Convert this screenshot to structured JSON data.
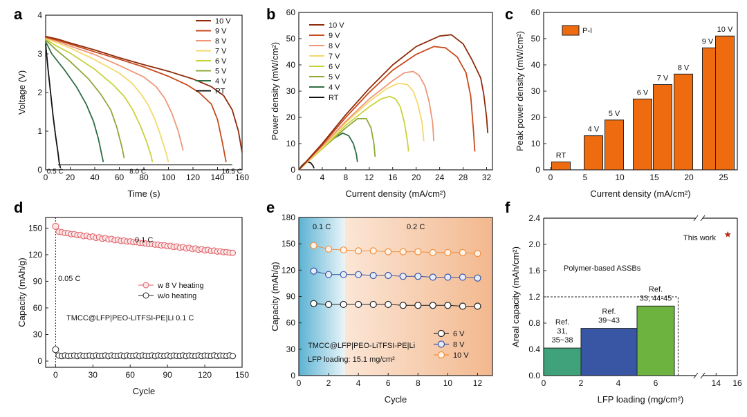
{
  "colors": {
    "10 V": "#8e2a08",
    "9 V": "#c8491b",
    "8 V": "#ee9777",
    "7 V": "#f4d86a",
    "6 V": "#c8d33b",
    "5 V": "#8ea83a",
    "4 V": "#2e6d45",
    "RT": "#111111",
    "bar": "#ef6b10",
    "pink": "#e15b64",
    "blue": "#3956a5",
    "green": "#6db33f",
    "star": "#b5301f"
  },
  "chart_data": [
    {
      "panel": "a",
      "type": "line",
      "xlabel": "Time (s)",
      "ylabel": "Voltage (V)",
      "xlim": [
        0,
        160
      ],
      "ylim": [
        0,
        4
      ],
      "xticks": [
        "0",
        "20",
        "40",
        "60",
        "80",
        "100",
        "120",
        "140",
        "160"
      ],
      "yticks": [
        "0",
        "1",
        "2",
        "3",
        "4"
      ],
      "legend": [
        "10 V",
        "9 V",
        "8 V",
        "7 V",
        "6 V",
        "5 V",
        "4 V",
        "RT"
      ],
      "rate_labels": [
        "0.5 C",
        "8.0 C",
        "16.5 C"
      ],
      "series": [
        {
          "name": "10 V",
          "x": [
            0,
            10,
            20,
            40,
            60,
            80,
            100,
            120,
            135,
            145,
            152,
            157,
            160
          ],
          "y": [
            3.45,
            3.38,
            3.28,
            3.1,
            2.9,
            2.72,
            2.55,
            2.35,
            2.15,
            1.92,
            1.55,
            1.0,
            0.45
          ]
        },
        {
          "name": "9 V",
          "x": [
            0,
            10,
            20,
            40,
            60,
            80,
            100,
            115,
            125,
            135,
            140,
            144,
            147
          ],
          "y": [
            3.43,
            3.35,
            3.25,
            3.05,
            2.86,
            2.66,
            2.42,
            2.2,
            2.0,
            1.7,
            1.3,
            0.7,
            0.2
          ]
        },
        {
          "name": "8 V",
          "x": [
            0,
            10,
            20,
            40,
            60,
            80,
            90,
            97,
            103,
            108,
            112
          ],
          "y": [
            3.42,
            3.32,
            3.2,
            2.98,
            2.7,
            2.4,
            2.15,
            1.85,
            1.45,
            1.0,
            0.5
          ]
        },
        {
          "name": "7 V",
          "x": [
            0,
            10,
            20,
            40,
            60,
            70,
            78,
            84,
            89,
            93,
            98,
            100
          ],
          "y": [
            3.4,
            3.28,
            3.15,
            2.85,
            2.5,
            2.25,
            1.95,
            1.65,
            1.3,
            0.95,
            0.45,
            0.2
          ]
        },
        {
          "name": "6 V",
          "x": [
            0,
            8,
            20,
            40,
            55,
            64,
            71,
            77,
            82,
            86,
            87
          ],
          "y": [
            3.38,
            3.22,
            3.02,
            2.6,
            2.2,
            1.9,
            1.55,
            1.15,
            0.75,
            0.35,
            0.2
          ]
        },
        {
          "name": "5 V",
          "x": [
            0,
            8,
            20,
            35,
            45,
            53,
            58,
            62,
            64
          ],
          "y": [
            3.36,
            3.12,
            2.8,
            2.35,
            1.95,
            1.55,
            1.1,
            0.6,
            0.3
          ]
        },
        {
          "name": "4 V",
          "x": [
            0,
            5,
            15,
            25,
            33,
            39,
            43,
            46,
            47
          ],
          "y": [
            3.32,
            3.0,
            2.6,
            2.15,
            1.7,
            1.25,
            0.8,
            0.35,
            0.2
          ]
        },
        {
          "name": "RT",
          "x": [
            0,
            2,
            4,
            6,
            8,
            10,
            11,
            12
          ],
          "y": [
            3.25,
            2.6,
            2.0,
            1.4,
            0.9,
            0.45,
            0.2,
            0.05
          ]
        }
      ]
    },
    {
      "panel": "b",
      "type": "line",
      "xlabel": "Current density (mA/cm²)",
      "ylabel": "Power density (mW/cm²)",
      "xlim": [
        0,
        33
      ],
      "ylim": [
        0,
        60
      ],
      "xticks": [
        "0",
        "4",
        "8",
        "12",
        "16",
        "20",
        "24",
        "28",
        "32"
      ],
      "yticks": [
        "0",
        "10",
        "20",
        "30",
        "40",
        "50",
        "60"
      ],
      "legend": [
        "10 V",
        "9 V",
        "8 V",
        "7 V",
        "6 V",
        "5 V",
        "4 V",
        "RT"
      ],
      "series": [
        {
          "name": "10 V",
          "x": [
            0,
            4,
            8,
            12,
            16,
            20,
            24,
            26,
            28,
            29.5,
            31,
            31.5,
            32,
            32.2
          ],
          "y": [
            0,
            10,
            21,
            31,
            40,
            47,
            51,
            51.5,
            48,
            42,
            35,
            29,
            20,
            14
          ]
        },
        {
          "name": "9 V",
          "x": [
            0,
            4,
            8,
            12,
            16,
            20,
            23,
            25,
            27,
            28.5,
            29.3,
            29.8,
            30
          ],
          "y": [
            0,
            9.5,
            20,
            29.5,
            38,
            44,
            47,
            46.5,
            43,
            37,
            28,
            14,
            7
          ]
        },
        {
          "name": "8 V",
          "x": [
            0,
            4,
            8,
            12,
            16,
            18,
            19.5,
            20.5,
            21.5,
            22.2,
            22.8,
            23
          ],
          "y": [
            0,
            9,
            18.5,
            27,
            34,
            37,
            37.5,
            36,
            32,
            26,
            18,
            11
          ]
        },
        {
          "name": "7 V",
          "x": [
            0,
            4,
            8,
            12,
            15,
            17,
            18.5,
            19.5,
            20.3,
            21,
            21.3
          ],
          "y": [
            0,
            8.5,
            18,
            26,
            31,
            33,
            32.5,
            30,
            25,
            18,
            11
          ]
        },
        {
          "name": "6 V",
          "x": [
            0,
            4,
            8,
            12,
            14,
            15.5,
            16.5,
            17.3,
            18,
            18.5,
            18.7
          ],
          "y": [
            0,
            8,
            17,
            24,
            27,
            28,
            27,
            24,
            18,
            11,
            7
          ]
        },
        {
          "name": "5 V",
          "x": [
            0,
            4,
            8,
            10,
            11.5,
            12.3,
            12.8,
            13
          ],
          "y": [
            0,
            8,
            16,
            19.5,
            19.5,
            16,
            10,
            5
          ]
        },
        {
          "name": "4 V",
          "x": [
            0,
            3,
            6,
            7.5,
            8.5,
            9.3,
            9.8,
            10
          ],
          "y": [
            0,
            6.5,
            12,
            14,
            13,
            10,
            6,
            3
          ]
        },
        {
          "name": "RT",
          "x": [
            0,
            0.5,
            1,
            1.5,
            2,
            2.4,
            2.6
          ],
          "y": [
            0,
            1.5,
            2.6,
            3,
            2.7,
            1.6,
            0.6
          ]
        }
      ]
    },
    {
      "panel": "c",
      "type": "bar",
      "xlabel": "Current density (mA/cm²)",
      "ylabel": "Peak power density (mW/cm²)",
      "xlim": [
        -1,
        27
      ],
      "ylim": [
        0,
        60
      ],
      "xticks": [
        "0",
        "5",
        "10",
        "15",
        "20",
        "25"
      ],
      "yticks": [
        "0",
        "10",
        "20",
        "30",
        "40",
        "50",
        "60"
      ],
      "legend": [
        "P-I"
      ],
      "categories": [
        "RT",
        "4 V",
        "5 V",
        "6 V",
        "7 V",
        "8 V",
        "9 V",
        "10 V"
      ],
      "x": [
        1.5,
        6.2,
        9.2,
        13.3,
        16.2,
        19.2,
        23.3,
        25.2
      ],
      "values": [
        3,
        13,
        19,
        27,
        32.5,
        36.5,
        46.5,
        51
      ]
    },
    {
      "panel": "d",
      "type": "scatter",
      "xlabel": "Cycle",
      "ylabel": "Capacity (mAh/g)",
      "xlim": [
        -8,
        150
      ],
      "ylim": [
        -7,
        162
      ],
      "xticks": [
        "0",
        "30",
        "60",
        "90",
        "120",
        "150"
      ],
      "yticks": [
        "0",
        "30",
        "60",
        "90",
        "120",
        "150"
      ],
      "legend": [
        "w 8 V heating",
        "w/o heating"
      ],
      "annotations": [
        "0.1 C",
        "0.05 C",
        "TMCC@LFP|PEO-LiTFSI-PE|Li  0.1 C"
      ],
      "series": [
        {
          "name": "w 8 V heating",
          "x_start": 0,
          "x_end": 143,
          "y_start": 152,
          "y_second": 146,
          "y_end": 122
        },
        {
          "name": "w/o heating",
          "x_start": 0,
          "x_end": 143,
          "y_start": 13,
          "y_rest": 6
        }
      ]
    },
    {
      "panel": "e",
      "type": "scatter",
      "xlabel": "Cycle",
      "ylabel": "Capacity (mAh/g)",
      "xlim": [
        0,
        13
      ],
      "ylim": [
        0,
        180
      ],
      "xticks": [
        "0",
        "2",
        "4",
        "6",
        "8",
        "10",
        "12"
      ],
      "yticks": [
        "0",
        "30",
        "60",
        "90",
        "120",
        "150",
        "180"
      ],
      "legend": [
        "6 V",
        "8 V",
        "10 V"
      ],
      "annotations": [
        "0.1 C",
        "0.2 C",
        "TMCC@LFP|PEO-LiTFSI-PE|Li",
        "LFP loading: 15.1 mg/cm²"
      ],
      "series": [
        {
          "name": "6 V",
          "x": [
            1,
            2,
            3,
            4,
            5,
            6,
            7,
            8,
            9,
            10,
            11,
            12
          ],
          "y": [
            82,
            81,
            81,
            81,
            81,
            81,
            80,
            80,
            80,
            80,
            79,
            79
          ]
        },
        {
          "name": "8 V",
          "x": [
            1,
            2,
            3,
            4,
            5,
            6,
            7,
            8,
            9,
            10,
            11,
            12
          ],
          "y": [
            119,
            115,
            115,
            115,
            114,
            114,
            113,
            113,
            112,
            112,
            112,
            111
          ]
        },
        {
          "name": "10 V",
          "x": [
            1,
            2,
            3,
            4,
            5,
            6,
            7,
            8,
            9,
            10,
            11,
            12
          ],
          "y": [
            148,
            144,
            143,
            142,
            142,
            141,
            141,
            141,
            140,
            140,
            140,
            139
          ]
        }
      ]
    },
    {
      "panel": "f",
      "type": "bar",
      "xlabel": "LFP loading (mg/cm²)",
      "ylabel": "Areal capacity (mAh/cm²)",
      "xlim": [
        0,
        16
      ],
      "ylim": [
        0,
        2.4
      ],
      "xticks": [
        "0",
        "2",
        "4",
        "6",
        "14",
        "16"
      ],
      "yticks": [
        "0.0",
        "0.4",
        "0.8",
        "1.2",
        "1.6",
        "2.0",
        "2.4"
      ],
      "annotations": [
        "Polymer-based ASSBs",
        "This work"
      ],
      "bars": [
        {
          "label": [
            "Ref.",
            "31,",
            "35~38"
          ],
          "x0": 0,
          "x1": 2,
          "value": 0.42
        },
        {
          "label": [
            "Ref.",
            "39~43"
          ],
          "x0": 2,
          "x1": 5,
          "value": 0.72
        },
        {
          "label": [
            "Ref.",
            "33, 44-45"
          ],
          "x0": 5,
          "x1": 7,
          "value": 1.06
        }
      ],
      "this_work": {
        "x": 15.1,
        "y": 2.15
      }
    }
  ],
  "panel_letters": [
    "a",
    "b",
    "c",
    "d",
    "e",
    "f"
  ]
}
